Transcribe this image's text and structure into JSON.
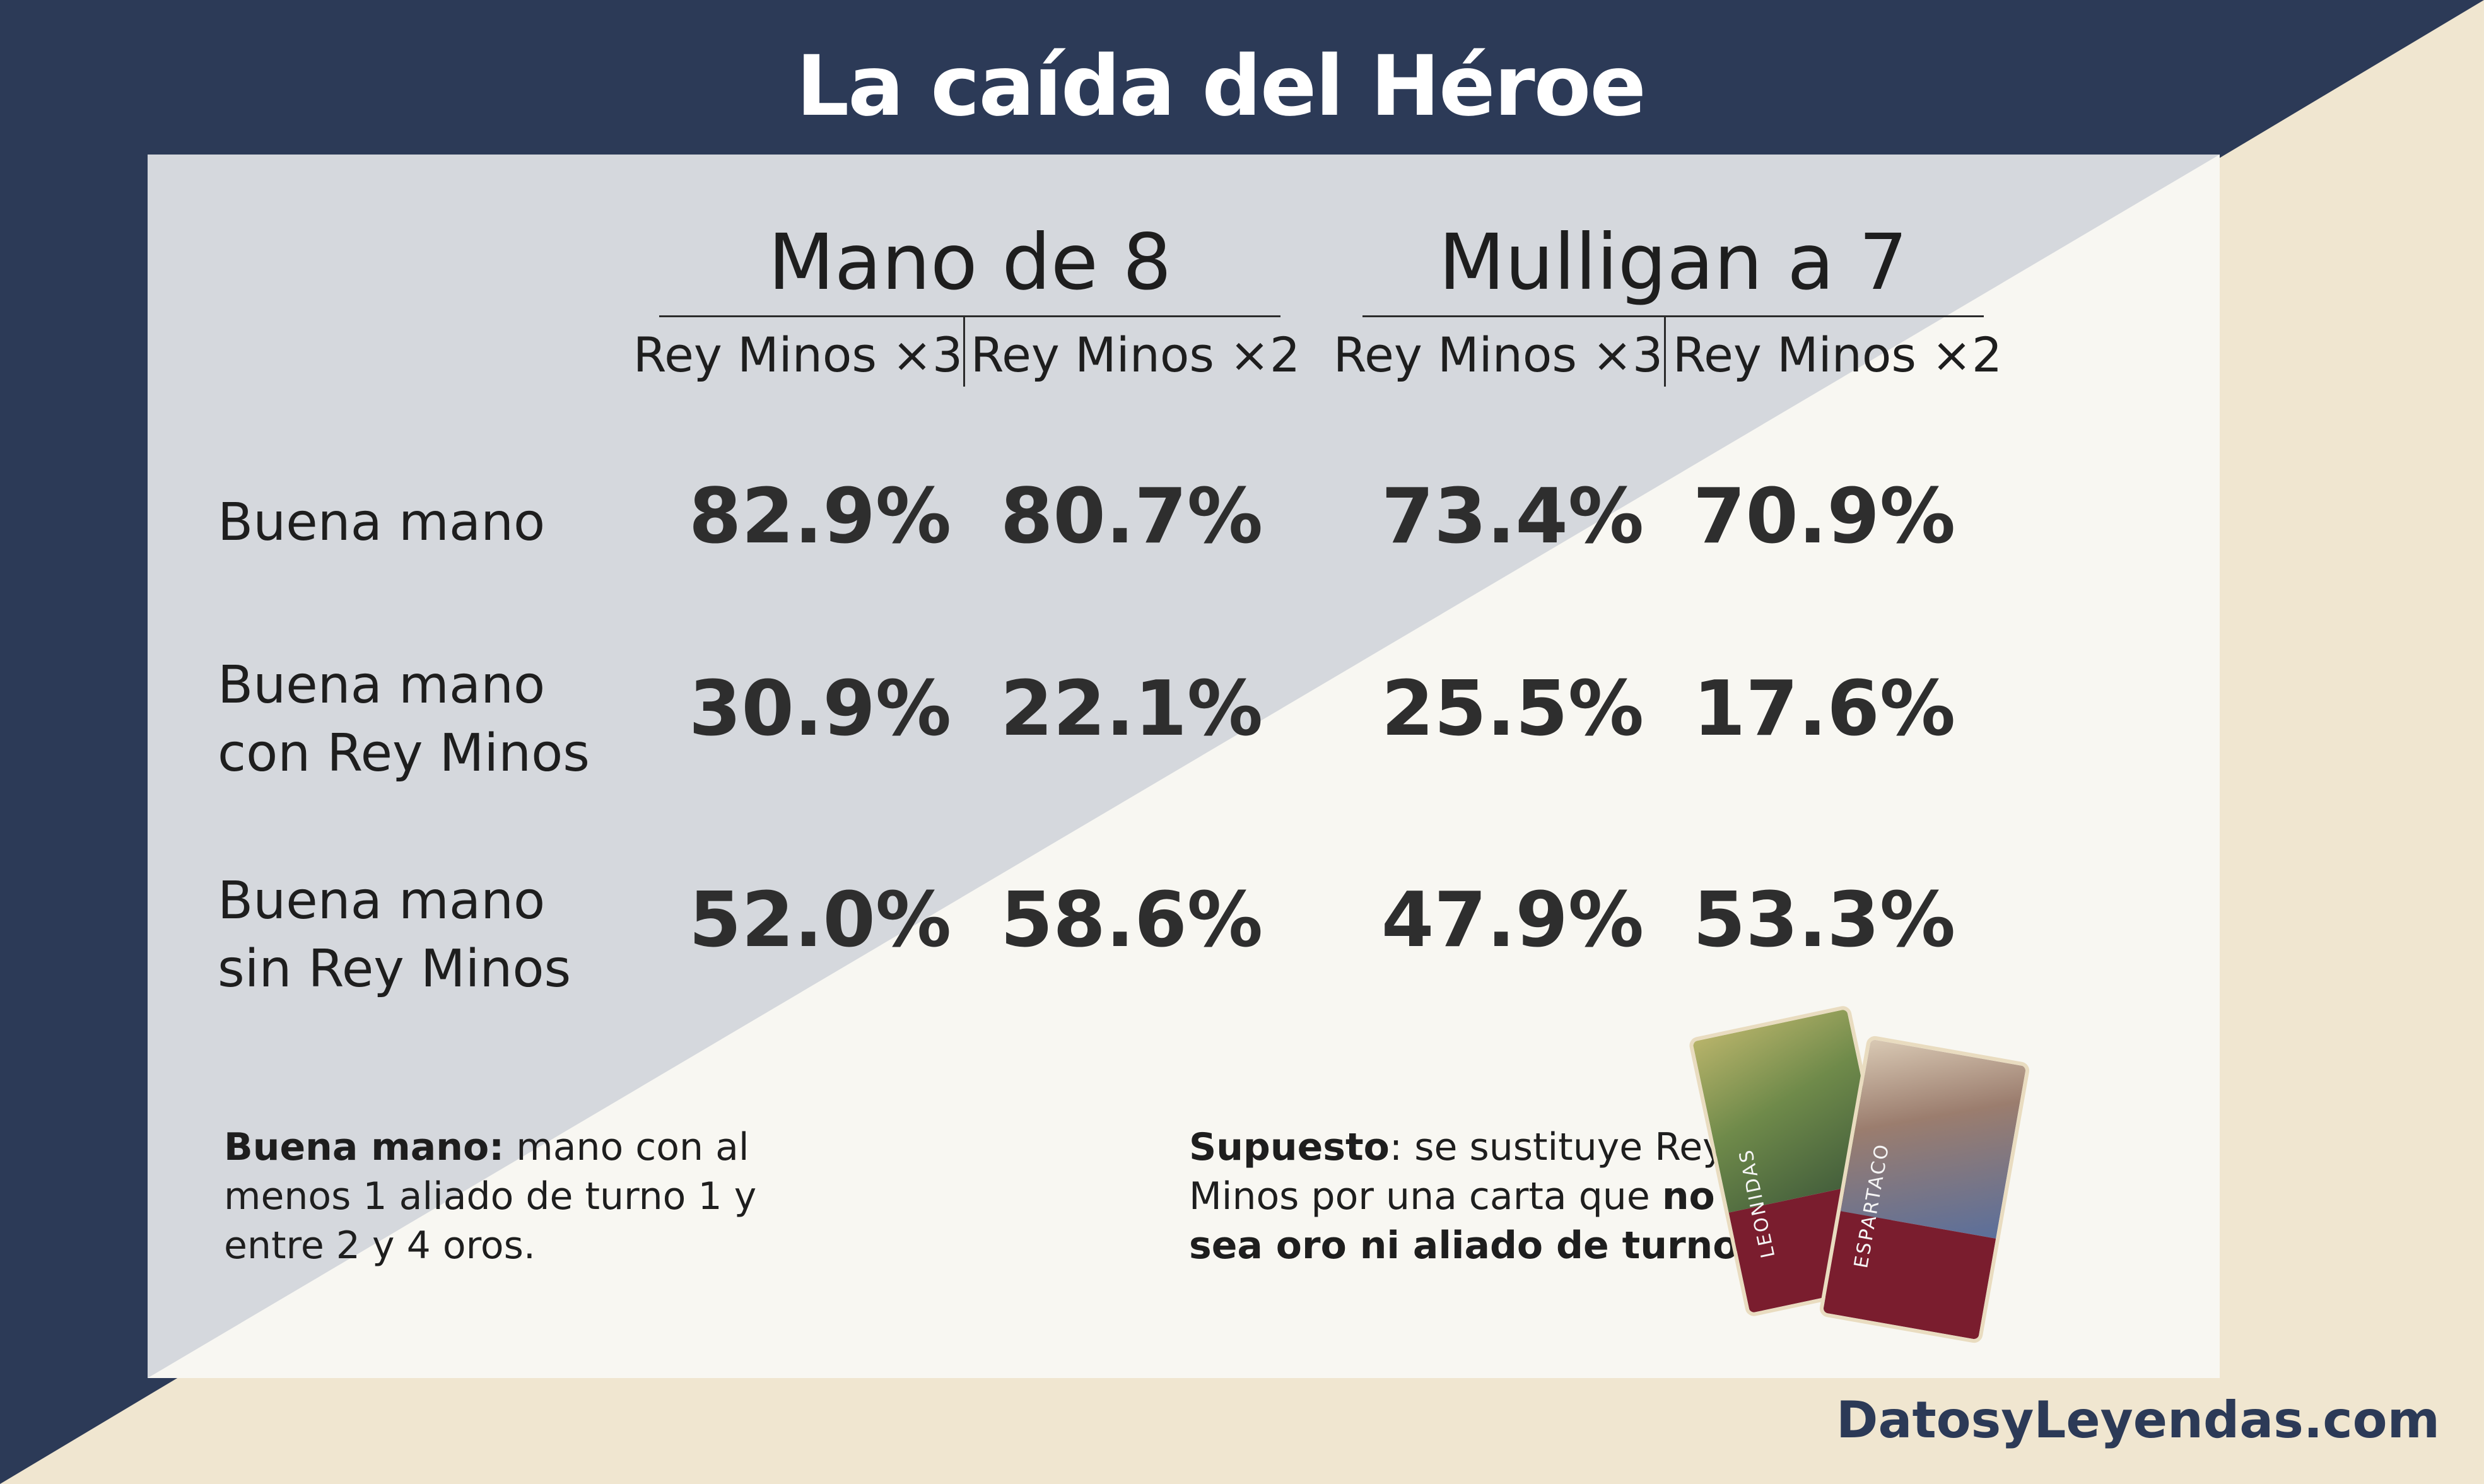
{
  "title": "La caída del Héroe",
  "colors": {
    "navy": "#2c3a57",
    "cream": "#f0e6d0",
    "panel_left": "#d5d8dd",
    "panel_right": "#f8f7f2"
  },
  "groups": [
    {
      "label": "Mano de 8",
      "subs": [
        "Rey Minos ×3",
        "Rey Minos ×2"
      ]
    },
    {
      "label": "Mulligan a 7",
      "subs": [
        "Rey Minos ×3",
        "Rey Minos ×2"
      ]
    }
  ],
  "rows": [
    {
      "label_lines": [
        "Buena mano"
      ],
      "values": [
        "82.9%",
        "80.7%",
        "73.4%",
        "70.9%"
      ]
    },
    {
      "label_lines": [
        "Buena mano",
        "con Rey Minos"
      ],
      "values": [
        "30.9%",
        "22.1%",
        "25.5%",
        "17.6%"
      ]
    },
    {
      "label_lines": [
        "Buena mano",
        "sin Rey Minos"
      ],
      "values": [
        "52.0%",
        "58.6%",
        "47.9%",
        "53.3%"
      ]
    }
  ],
  "chart_data": {
    "type": "table",
    "title": "La caída del Héroe",
    "columns": [
      "Mano de 8 / Rey Minos ×3",
      "Mano de 8 / Rey Minos ×2",
      "Mulligan a 7 / Rey Minos ×3",
      "Mulligan a 7 / Rey Minos ×2"
    ],
    "rows": [
      "Buena mano",
      "Buena mano con Rey Minos",
      "Buena mano sin Rey Minos"
    ],
    "values": [
      [
        82.9,
        80.7,
        73.4,
        70.9
      ],
      [
        30.9,
        22.1,
        25.5,
        17.6
      ],
      [
        52.0,
        58.6,
        47.9,
        53.3
      ]
    ]
  },
  "notes": {
    "left": {
      "bold": "Buena mano:",
      "text_lines": [
        " mano con al",
        "menos 1 aliado de turno 1 y",
        "entre 2 y 4 oros."
      ]
    },
    "right": {
      "bold1": "Supuesto",
      "line1": ": se sustituye Rey",
      "line2a": "Minos por una carta que ",
      "bold2": "no",
      "bold3": "sea oro ni aliado de turno 1",
      "end": "."
    }
  },
  "cards": [
    {
      "name": "LEONIDAS",
      "icon": "warrior-card-art"
    },
    {
      "name": "ESPARTACO",
      "icon": "gladiator-card-art"
    }
  ],
  "footer": "DatosyLeyendas.com"
}
